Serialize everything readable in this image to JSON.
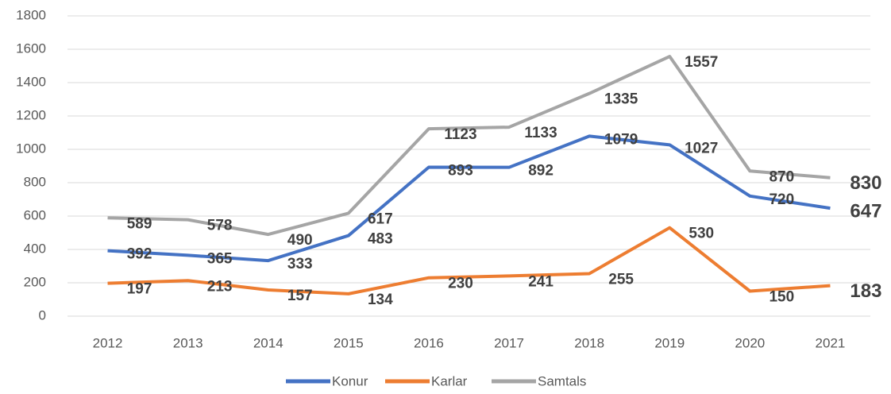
{
  "chart_data": {
    "type": "line",
    "x": [
      "2012",
      "2013",
      "2014",
      "2015",
      "2016",
      "2017",
      "2018",
      "2019",
      "2020",
      "2021"
    ],
    "series": [
      {
        "name": "Konur",
        "color": "#4472c4",
        "values": [
          392,
          365,
          333,
          483,
          893,
          892,
          1079,
          1027,
          720,
          647
        ]
      },
      {
        "name": "Karlar",
        "color": "#ed7d31",
        "values": [
          197,
          213,
          157,
          134,
          230,
          241,
          255,
          530,
          150,
          183
        ]
      },
      {
        "name": "Samtals",
        "color": "#a5a5a5",
        "values": [
          589,
          578,
          490,
          617,
          1123,
          1133,
          1335,
          1557,
          870,
          830
        ]
      }
    ],
    "ylim": [
      0,
      1800
    ],
    "yticks": [
      0,
      200,
      400,
      600,
      800,
      1000,
      1200,
      1400,
      1600,
      1800
    ],
    "grid": true,
    "legend": "bottom"
  }
}
